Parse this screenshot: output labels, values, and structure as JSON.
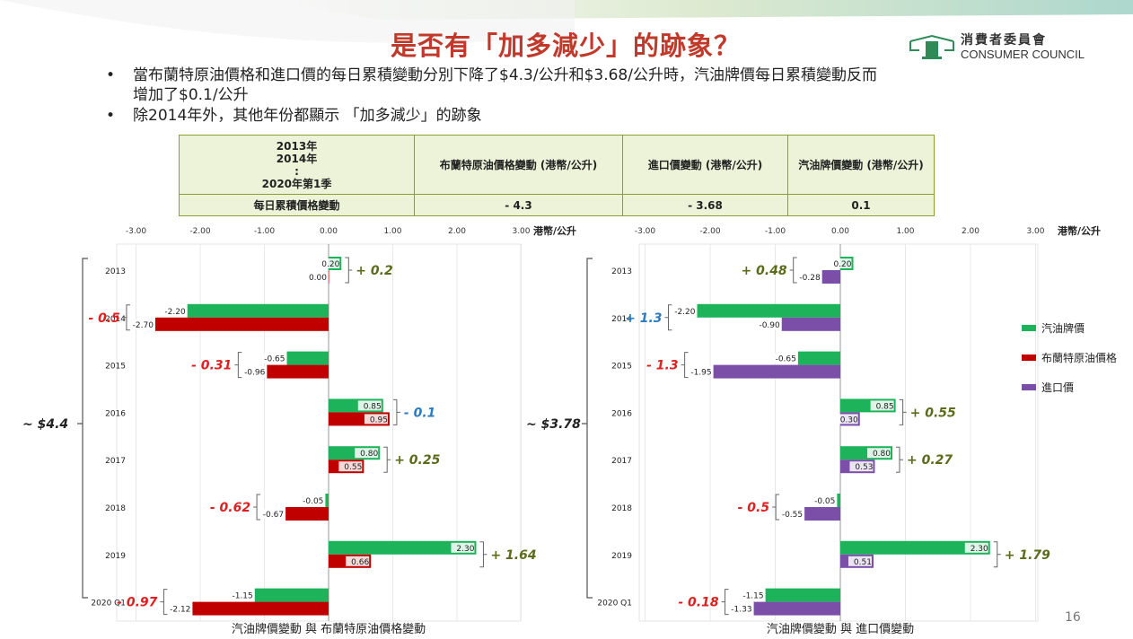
{
  "title": "是否有「加多減少」的跡象？",
  "logo": {
    "zh": "消費者委員會",
    "en": "CONSUMER COUNCIL"
  },
  "bullets": [
    "當布蘭特原油價格和進口價的每日累積變動分別下降了$4.3/公升和$3.68/公升時，汽油牌價每日累積變動反而增加了$0.1/公升",
    "除2014年外，其他年份都顯示 「加多減少」的跡象"
  ],
  "summary_table": {
    "period_lines": [
      "2013年",
      "2014年",
      ":",
      "2020年第1季"
    ],
    "headers": [
      "布蘭特原油價格變動 (港幣/公升)",
      "進口價變動 (港幣/公升)",
      "汽油牌價變動 (港幣/公升)"
    ],
    "row_label": "每日累積價格變動",
    "values": [
      "- 4.3",
      "- 3.68",
      "0.1"
    ]
  },
  "legend": [
    {
      "label": "汽油牌價",
      "color": "#1db35a"
    },
    {
      "label": "布蘭特原油價格",
      "color": "#c00000"
    },
    {
      "label": "進口價",
      "color": "#7b4ea8"
    }
  ],
  "page_number": "16",
  "chart_data": [
    {
      "type": "bar",
      "orientation": "horizontal",
      "title": "汽油牌價變動 與 布蘭特原油價格變動",
      "unit_label": "港幣/公升",
      "xlim": [
        -3,
        3
      ],
      "x_ticks": [
        "-3.00",
        "-2.00",
        "-1.00",
        "0.00",
        "1.00",
        "2.00",
        "3.00"
      ],
      "categories": [
        "2013",
        "2014",
        "2015",
        "2016",
        "2017",
        "2018",
        "2019",
        "2020 Q1"
      ],
      "series": [
        {
          "name": "汽油牌價",
          "color": "#1db35a",
          "values": [
            0.2,
            -2.2,
            -0.65,
            0.85,
            0.8,
            -0.05,
            2.3,
            -1.15
          ]
        },
        {
          "name": "布蘭特原油價格",
          "color": "#c00000",
          "values": [
            0.0,
            -2.7,
            -0.96,
            0.95,
            0.55,
            -0.67,
            0.66,
            -2.12
          ]
        }
      ],
      "value_labels": [
        [
          "0.20",
          "-2.20",
          "-0.65",
          "0.85",
          "0.80",
          "-0.05",
          "2.30",
          "-1.15"
        ],
        [
          "0.00",
          "-2.70",
          "-0.96",
          "0.95",
          "0.55",
          "-0.67",
          "0.66",
          "-2.12"
        ]
      ],
      "annotations": [
        {
          "text": "+ 0.2",
          "color": "#5b6b1a"
        },
        {
          "text": "- 0.5",
          "color": "#e02020"
        },
        {
          "text": "- 0.31",
          "color": "#e02020"
        },
        {
          "text": "- 0.1",
          "color": "#2a7bc0"
        },
        {
          "text": "+ 0.25",
          "color": "#5b6b1a"
        },
        {
          "text": "- 0.62",
          "color": "#e02020"
        },
        {
          "text": "+ 1.64",
          "color": "#5b6b1a"
        },
        {
          "text": "- 0.97",
          "color": "#e02020"
        }
      ],
      "total": "~ $4.4"
    },
    {
      "type": "bar",
      "orientation": "horizontal",
      "title": "汽油牌價變動 與 進口價變動",
      "unit_label": "港幣/公升",
      "xlim": [
        -3,
        3
      ],
      "x_ticks": [
        "-3.00",
        "-2.00",
        "-1.00",
        "0.00",
        "1.00",
        "2.00",
        "3.00"
      ],
      "categories": [
        "2013",
        "2014",
        "2015",
        "2016",
        "2017",
        "2018",
        "2019",
        "2020 Q1"
      ],
      "series": [
        {
          "name": "汽油牌價",
          "color": "#1db35a",
          "values": [
            0.2,
            -2.2,
            -0.65,
            0.85,
            0.8,
            -0.05,
            2.3,
            -1.15
          ]
        },
        {
          "name": "進口價",
          "color": "#7b4ea8",
          "values": [
            -0.28,
            -0.9,
            -1.95,
            0.3,
            0.53,
            -0.55,
            0.51,
            -1.33
          ]
        }
      ],
      "value_labels": [
        [
          "0.20",
          "-2.20",
          "-0.65",
          "0.85",
          "0.80",
          "-0.05",
          "2.30",
          "-1.15"
        ],
        [
          "-0.28",
          "-0.90",
          "-1.95",
          "0.30",
          "0.53",
          "-0.55",
          "0.51",
          "-1.33"
        ]
      ],
      "annotations": [
        {
          "text": "+ 0.48",
          "color": "#5b6b1a"
        },
        {
          "text": "+ 1.3",
          "color": "#2a7bc0"
        },
        {
          "text": "- 1.3",
          "color": "#e02020"
        },
        {
          "text": "+ 0.55",
          "color": "#5b6b1a"
        },
        {
          "text": "+ 0.27",
          "color": "#5b6b1a"
        },
        {
          "text": "- 0.5",
          "color": "#e02020"
        },
        {
          "text": "+ 1.79",
          "color": "#5b6b1a"
        },
        {
          "text": "- 0.18",
          "color": "#e02020"
        }
      ],
      "total": "~ $3.78"
    }
  ]
}
